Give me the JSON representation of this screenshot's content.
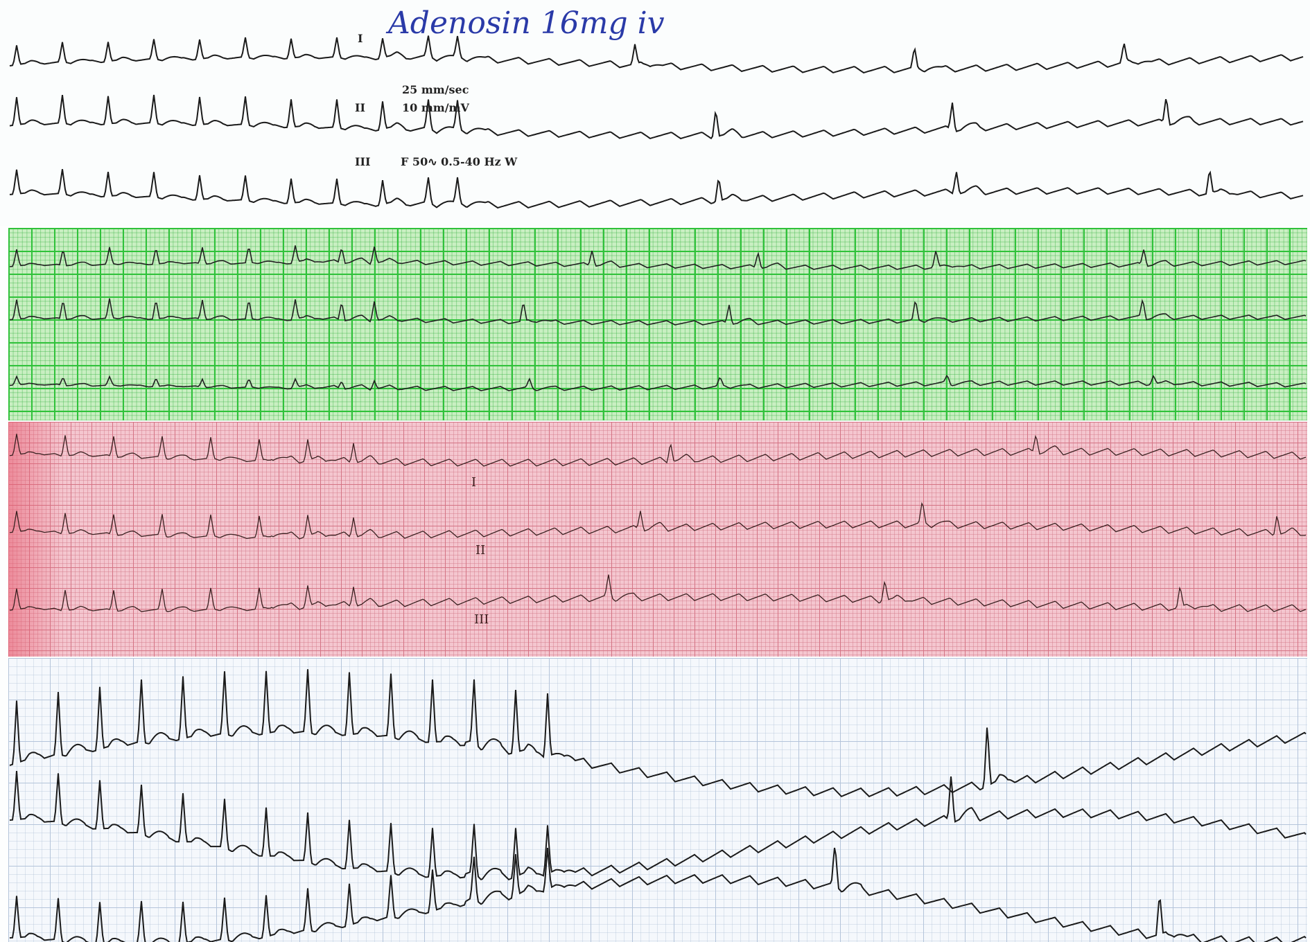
{
  "annotation": "Adenosin 16mg iv",
  "recorder": {
    "leads": [
      "I",
      "II",
      "III"
    ],
    "speed": "25 mm/sec",
    "gain": "10 mm/mV",
    "filter": "F 50∿ 0.5-40 Hz W"
  },
  "pink_strip": {
    "leads": [
      "I",
      "II",
      "III"
    ]
  }
}
